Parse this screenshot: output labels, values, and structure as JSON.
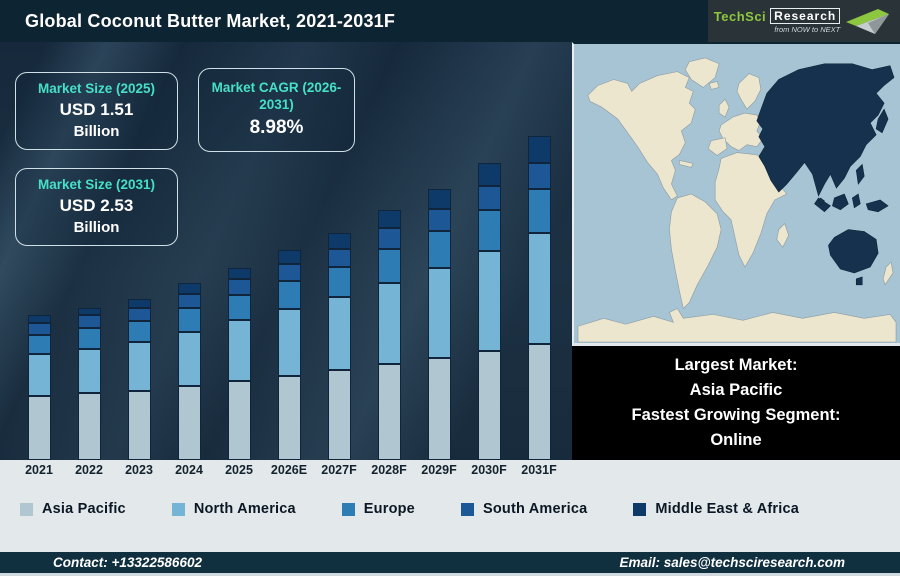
{
  "header": {
    "title": "Global Coconut Butter Market, 2021-2031F",
    "logo": {
      "brand_primary": "TechSci",
      "brand_secondary": "Research",
      "tagline": "from NOW to NEXT"
    }
  },
  "info_boxes": [
    {
      "label": "Market Size (2025)",
      "value": "USD 1.51",
      "unit": "Billion"
    },
    {
      "label": "Market CAGR (2026-2031)",
      "value": "8.98%",
      "unit": ""
    },
    {
      "label": "Market Size (2031)",
      "value": "USD 2.53",
      "unit": "Billion"
    }
  ],
  "map_panel": {
    "highlight_region": "Asia Pacific",
    "callout_lines": [
      "Largest Market:",
      "Asia Pacific",
      "Fastest Growing Segment:",
      "Online"
    ]
  },
  "chart_data": {
    "type": "bar",
    "stacked": true,
    "title": "Global Coconut Butter Market, 2021-2031F",
    "value_unit": "USD Billion",
    "estimated": true,
    "axes_hidden": true,
    "legend_position": "bottom",
    "categories": [
      "2021",
      "2022",
      "2023",
      "2024",
      "2025",
      "2026E",
      "2027F",
      "2028F",
      "2029F",
      "2030F",
      "2031F"
    ],
    "series": [
      {
        "name": "Asia Pacific",
        "color": "#b0c7d1",
        "values": [
          0.5,
          0.52,
          0.54,
          0.58,
          0.62,
          0.66,
          0.7,
          0.75,
          0.8,
          0.85,
          0.91
        ]
      },
      {
        "name": "North America",
        "color": "#76b4d6",
        "values": [
          0.33,
          0.35,
          0.38,
          0.42,
          0.47,
          0.52,
          0.57,
          0.63,
          0.7,
          0.78,
          0.86
        ]
      },
      {
        "name": "Europe",
        "color": "#2e7cb4",
        "values": [
          0.15,
          0.16,
          0.17,
          0.19,
          0.2,
          0.22,
          0.24,
          0.27,
          0.29,
          0.32,
          0.35
        ]
      },
      {
        "name": "South America",
        "color": "#1d5796",
        "values": [
          0.09,
          0.1,
          0.1,
          0.11,
          0.12,
          0.13,
          0.14,
          0.16,
          0.17,
          0.19,
          0.2
        ]
      },
      {
        "name": "Middle East & Africa",
        "color": "#0d3a69",
        "values": [
          0.06,
          0.06,
          0.07,
          0.08,
          0.09,
          0.11,
          0.12,
          0.14,
          0.16,
          0.18,
          0.21
        ]
      }
    ],
    "totals": [
      1.13,
      1.19,
      1.26,
      1.38,
      1.5,
      1.64,
      1.77,
      1.95,
      2.12,
      2.32,
      2.53
    ],
    "anchors": {
      "2025": 1.51,
      "2031": 2.53,
      "cagr_2026_2031_pct": 8.98
    }
  },
  "colors": {
    "header_bg": "#0d2433",
    "chart_bg": "#1c3143",
    "accent_teal": "#46e0c6",
    "map_highlight": "#16314e",
    "map_land": "#ece6ce",
    "map_ocean": "#a6c4d3",
    "logo_green": "#8dc63f"
  },
  "footer": {
    "contact": "Contact: +13322586602",
    "email": "Email: sales@techsciresearch.com"
  }
}
